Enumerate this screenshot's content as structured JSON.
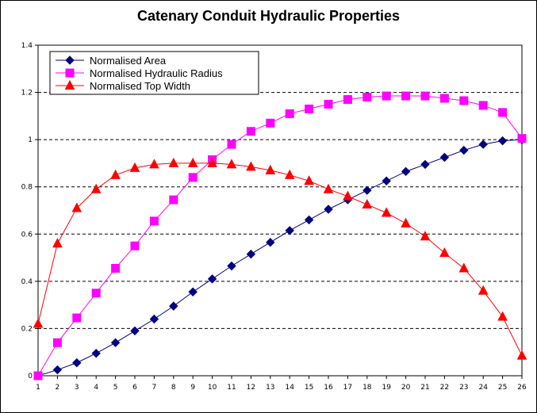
{
  "chart_data": {
    "type": "line",
    "title": "Catenary Conduit Hydraulic Properties",
    "xlabel": "",
    "ylabel": "",
    "x": [
      1,
      2,
      3,
      4,
      5,
      6,
      7,
      8,
      9,
      10,
      11,
      12,
      13,
      14,
      15,
      16,
      17,
      18,
      19,
      20,
      21,
      22,
      23,
      24,
      25,
      26
    ],
    "xticks": [
      "1",
      "2",
      "3",
      "4",
      "5",
      "6",
      "7",
      "8",
      "9",
      "10",
      "11",
      "12",
      "13",
      "14",
      "15",
      "16",
      "17",
      "18",
      "19",
      "20",
      "21",
      "22",
      "23",
      "24",
      "25",
      "26"
    ],
    "ylim": [
      0,
      1.4
    ],
    "yticks": [
      "0",
      "0.2",
      "0.4",
      "0.6",
      "0.8",
      "1",
      "1.2",
      "1.4"
    ],
    "grid": "horizontal dashed",
    "legend_position": "top-left",
    "series": [
      {
        "name": "Normalised Area",
        "color": "#000080",
        "marker": "diamond",
        "values": [
          0,
          0.025,
          0.055,
          0.095,
          0.14,
          0.19,
          0.24,
          0.295,
          0.355,
          0.41,
          0.465,
          0.515,
          0.565,
          0.615,
          0.66,
          0.705,
          0.745,
          0.785,
          0.825,
          0.865,
          0.895,
          0.925,
          0.955,
          0.98,
          0.995,
          1.0
        ]
      },
      {
        "name": "Normalised Hydraulic Radius",
        "color": "#ff00ff",
        "marker": "square",
        "values": [
          0,
          0.14,
          0.245,
          0.35,
          0.455,
          0.55,
          0.655,
          0.745,
          0.84,
          0.915,
          0.98,
          1.035,
          1.07,
          1.11,
          1.13,
          1.15,
          1.17,
          1.18,
          1.185,
          1.185,
          1.185,
          1.175,
          1.165,
          1.145,
          1.115,
          1.005
        ]
      },
      {
        "name": "Normalised Top Width",
        "color": "#ff0000",
        "marker": "triangle",
        "values": [
          0.22,
          0.56,
          0.71,
          0.79,
          0.85,
          0.88,
          0.895,
          0.9,
          0.9,
          0.9,
          0.895,
          0.885,
          0.87,
          0.85,
          0.825,
          0.79,
          0.76,
          0.725,
          0.69,
          0.645,
          0.59,
          0.52,
          0.455,
          0.36,
          0.25,
          0.085
        ]
      }
    ]
  }
}
